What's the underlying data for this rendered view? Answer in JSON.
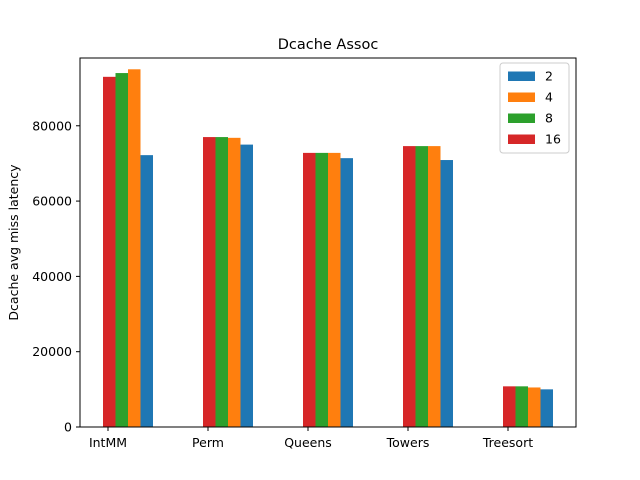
{
  "chart_data": {
    "type": "bar",
    "title": "Dcache Assoc",
    "xlabel": "",
    "ylabel": "Dcache avg miss latency",
    "categories": [
      "IntMM",
      "Perm",
      "Queens",
      "Towers",
      "Treesort"
    ],
    "ylim": [
      0,
      98000
    ],
    "yticks": [
      0,
      20000,
      40000,
      60000,
      80000
    ],
    "series": [
      {
        "name": "16",
        "color": "#d62728",
        "values": [
          93000,
          77000,
          72800,
          74600,
          10800
        ]
      },
      {
        "name": "8",
        "color": "#2ca02c",
        "values": [
          94000,
          77000,
          72800,
          74600,
          10800
        ]
      },
      {
        "name": "4",
        "color": "#ff7f0e",
        "values": [
          95000,
          76800,
          72800,
          74600,
          10500
        ]
      },
      {
        "name": "2",
        "color": "#1f77b4",
        "values": [
          72200,
          75000,
          71400,
          70900,
          10000
        ]
      }
    ],
    "legend": {
      "placement": "top-right",
      "entries": [
        {
          "label": "2",
          "color": "#1f77b4"
        },
        {
          "label": "4",
          "color": "#ff7f0e"
        },
        {
          "label": "8",
          "color": "#2ca02c"
        },
        {
          "label": "16",
          "color": "#d62728"
        }
      ]
    }
  }
}
